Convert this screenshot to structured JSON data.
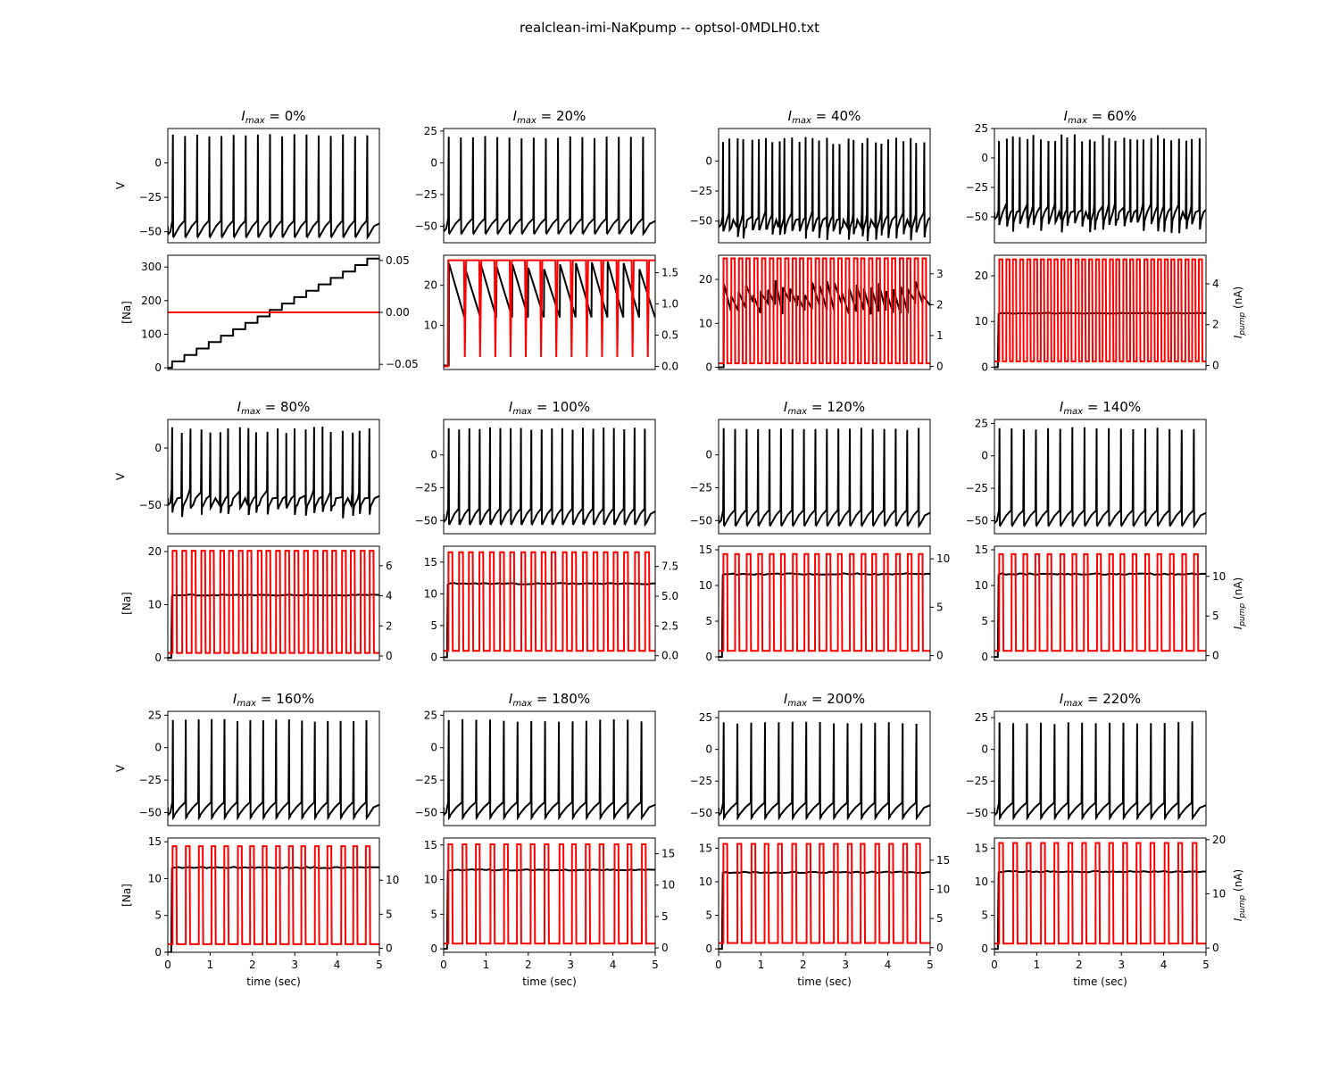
{
  "figure": {
    "title": "realclean-imi-NaKpump -- optsol-0MDLH0.txt",
    "panel_title_prefix": "I",
    "panel_title_subscript": "max",
    "v_axis_label": "V",
    "na_axis_label": "[Na]",
    "pump_axis_label_main": "I",
    "pump_axis_label_sub": "pump",
    "pump_axis_label_unit": " (nA)",
    "time_axis_label": "time (sec)",
    "colors": {
      "voltage": "#000000",
      "sodium": "#000000",
      "pump": "#ff0000"
    }
  },
  "chart_data": [
    {
      "type": "line",
      "title": "= 0%",
      "x_label": "time (sec)",
      "xlim": [
        0,
        5
      ],
      "xticks": [
        0,
        1,
        2,
        3,
        4,
        5
      ],
      "show_xticks": false,
      "v_ylim": [
        -58,
        25
      ],
      "v_yticks": [
        -50,
        -25,
        0
      ],
      "v_baseline": -52,
      "v_peak": 21,
      "v_nspikes": 17,
      "v_irregular": false,
      "na_ylim": [
        -5,
        335
      ],
      "na_yticks": [
        0,
        100,
        200,
        300
      ],
      "na_mode": "staircase",
      "na_start": 0,
      "na_end": 325,
      "na_level": null,
      "pump_ylim": [
        -0.055,
        0.055
      ],
      "pump_yticks": [
        -0.05,
        0.0,
        0.05
      ],
      "pump_tick_labels": [
        "−0.05",
        "0.00",
        "0.05"
      ],
      "pump_mode": "flat",
      "pump_level": 0,
      "pump_npulses": 0,
      "pump_peak": 0,
      "pump_low": 0,
      "show_v_label": true,
      "show_na_label": true,
      "show_pump_label": false
    },
    {
      "type": "line",
      "title": "= 20%",
      "x_label": "time (sec)",
      "xlim": [
        0,
        5
      ],
      "xticks": [
        0,
        1,
        2,
        3,
        4,
        5
      ],
      "show_xticks": false,
      "v_ylim": [
        -63,
        27
      ],
      "v_yticks": [
        -50,
        -25,
        0,
        25
      ],
      "v_baseline": -54,
      "v_peak": 21,
      "v_nspikes": 17,
      "v_irregular": false,
      "na_ylim": [
        -1,
        27.5
      ],
      "na_yticks": [
        10,
        20
      ],
      "na_mode": "sawtooth",
      "na_start": 0,
      "na_end": 0,
      "na_level": null,
      "na_high": 26,
      "na_low": 12,
      "pump_ylim": [
        -0.05,
        1.78
      ],
      "pump_yticks": [
        0.0,
        0.5,
        1.0,
        1.5
      ],
      "pump_tick_labels": [
        "0.0",
        "0.5",
        "1.0",
        "1.5"
      ],
      "pump_mode": "pulses",
      "pump_level": 0,
      "pump_npulses": 13,
      "pump_peak": 1.7,
      "pump_low": 0.0,
      "pump_inverted": true,
      "show_v_label": false,
      "show_na_label": false,
      "show_pump_label": false
    },
    {
      "type": "line",
      "title": "= 40%",
      "x_label": "time (sec)",
      "xlim": [
        0,
        5
      ],
      "xticks": [
        0,
        1,
        2,
        3,
        4,
        5
      ],
      "show_xticks": false,
      "v_ylim": [
        -68,
        27
      ],
      "v_yticks": [
        -50,
        -25,
        0
      ],
      "v_baseline": -55,
      "v_peak": 20,
      "v_nspikes": 30,
      "v_irregular": true,
      "na_ylim": [
        -0.5,
        25.5
      ],
      "na_yticks": [
        0,
        10,
        20
      ],
      "na_mode": "sawtooth",
      "na_start": 0,
      "na_end": 0,
      "na_level": null,
      "na_high": 20,
      "na_low": 12,
      "na_fast": true,
      "pump_ylim": [
        -0.1,
        3.6
      ],
      "pump_yticks": [
        0,
        1,
        2,
        3
      ],
      "pump_tick_labels": [
        "0",
        "1",
        "2",
        "3"
      ],
      "pump_mode": "pulses",
      "pump_level": 0,
      "pump_npulses": 27,
      "pump_peak": 3.5,
      "pump_low": 0.1,
      "pump_inverted": false,
      "show_v_label": false,
      "show_na_label": false,
      "show_pump_label": false
    },
    {
      "type": "line",
      "title": "= 60%",
      "x_label": "time (sec)",
      "xlim": [
        0,
        5
      ],
      "xticks": [
        0,
        1,
        2,
        3,
        4,
        5
      ],
      "show_xticks": false,
      "v_ylim": [
        -72,
        25
      ],
      "v_yticks": [
        -50,
        -25,
        0,
        25
      ],
      "v_baseline": -52,
      "v_peak": 20,
      "v_nspikes": 30,
      "v_irregular": true,
      "na_ylim": [
        -0.5,
        24.5
      ],
      "na_yticks": [
        0,
        10,
        20
      ],
      "na_mode": "level",
      "na_start": 0,
      "na_end": 0,
      "na_level": 11.8,
      "pump_ylim": [
        -0.2,
        5.4
      ],
      "pump_yticks": [
        0,
        2,
        4
      ],
      "pump_tick_labels": [
        "0",
        "2",
        "4"
      ],
      "pump_mode": "pulses",
      "pump_level": 0,
      "pump_npulses": 30,
      "pump_peak": 5.2,
      "pump_low": 0.2,
      "pump_inverted": false,
      "show_v_label": false,
      "show_na_label": false,
      "show_pump_label": true
    },
    {
      "type": "line",
      "title": "= 80%",
      "x_label": "time (sec)",
      "xlim": [
        0,
        5
      ],
      "xticks": [
        0,
        1,
        2,
        3,
        4,
        5
      ],
      "show_xticks": false,
      "v_ylim": [
        -75,
        25
      ],
      "v_yticks": [
        -50,
        0
      ],
      "v_baseline": -50,
      "v_peak": 19,
      "v_nspikes": 22,
      "v_irregular": true,
      "na_ylim": [
        -0.5,
        21
      ],
      "na_yticks": [
        0,
        10,
        20
      ],
      "na_mode": "level",
      "na_start": 0,
      "na_end": 0,
      "na_level": 11.8,
      "pump_ylim": [
        -0.3,
        7.3
      ],
      "pump_yticks": [
        0,
        2,
        4,
        6
      ],
      "pump_tick_labels": [
        "0",
        "2",
        "4",
        "6"
      ],
      "pump_mode": "pulses",
      "pump_level": 0,
      "pump_npulses": 22,
      "pump_peak": 7.0,
      "pump_low": 0.2,
      "pump_inverted": false,
      "show_v_label": true,
      "show_na_label": true,
      "show_pump_label": false
    },
    {
      "type": "line",
      "title": "= 100%",
      "x_label": "time (sec)",
      "xlim": [
        0,
        5
      ],
      "xticks": [
        0,
        1,
        2,
        3,
        4,
        5
      ],
      "show_xticks": false,
      "v_ylim": [
        -60,
        27
      ],
      "v_yticks": [
        -50,
        -25,
        0
      ],
      "v_baseline": -51,
      "v_peak": 21,
      "v_nspikes": 20,
      "v_irregular": false,
      "na_ylim": [
        -0.5,
        17.5
      ],
      "na_yticks": [
        0,
        5,
        10,
        15
      ],
      "na_mode": "level",
      "na_start": 0,
      "na_end": 0,
      "na_level": 11.6,
      "pump_ylim": [
        -0.4,
        9.2
      ],
      "pump_yticks": [
        0.0,
        2.5,
        5.0,
        7.5
      ],
      "pump_tick_labels": [
        "0.0",
        "2.5",
        "5.0",
        "7.5"
      ],
      "pump_mode": "pulses",
      "pump_level": 0,
      "pump_npulses": 20,
      "pump_peak": 8.7,
      "pump_low": 0.4,
      "pump_inverted": false,
      "show_v_label": false,
      "show_na_label": false,
      "show_pump_label": false
    },
    {
      "type": "line",
      "title": "= 120%",
      "x_label": "time (sec)",
      "xlim": [
        0,
        5
      ],
      "xticks": [
        0,
        1,
        2,
        3,
        4,
        5
      ],
      "show_xticks": false,
      "v_ylim": [
        -60,
        27
      ],
      "v_yticks": [
        -50,
        -25,
        0
      ],
      "v_baseline": -52,
      "v_peak": 21,
      "v_nspikes": 18,
      "v_irregular": false,
      "na_ylim": [
        -0.5,
        15.5
      ],
      "na_yticks": [
        0,
        5,
        10,
        15
      ],
      "na_mode": "level",
      "na_start": 0,
      "na_end": 0,
      "na_level": 11.6,
      "pump_ylim": [
        -0.5,
        11.3
      ],
      "pump_yticks": [
        0,
        5,
        10
      ],
      "pump_tick_labels": [
        "0",
        "5",
        "10"
      ],
      "pump_mode": "pulses",
      "pump_level": 0,
      "pump_npulses": 18,
      "pump_peak": 10.5,
      "pump_low": 0.5,
      "pump_inverted": false,
      "show_v_label": false,
      "show_na_label": false,
      "show_pump_label": false
    },
    {
      "type": "line",
      "title": "= 140%",
      "x_label": "time (sec)",
      "xlim": [
        0,
        5
      ],
      "xticks": [
        0,
        1,
        2,
        3,
        4,
        5
      ],
      "show_xticks": false,
      "v_ylim": [
        -60,
        28
      ],
      "v_yticks": [
        -50,
        -25,
        0,
        25
      ],
      "v_baseline": -52,
      "v_peak": 22,
      "v_nspikes": 17,
      "v_irregular": false,
      "na_ylim": [
        -0.5,
        15.5
      ],
      "na_yticks": [
        0,
        5,
        10,
        15
      ],
      "na_mode": "level",
      "na_start": 0,
      "na_end": 0,
      "na_level": 11.6,
      "pump_ylim": [
        -0.6,
        13.8
      ],
      "pump_yticks": [
        0,
        5,
        10
      ],
      "pump_tick_labels": [
        "0",
        "5",
        "10"
      ],
      "pump_mode": "pulses",
      "pump_level": 0,
      "pump_npulses": 17,
      "pump_peak": 12.8,
      "pump_low": 0.6,
      "pump_inverted": false,
      "show_v_label": false,
      "show_na_label": false,
      "show_pump_label": true
    },
    {
      "type": "line",
      "title": "= 160%",
      "x_label": "time (sec)",
      "xlim": [
        0,
        5
      ],
      "xticks": [
        0,
        1,
        2,
        3,
        4,
        5
      ],
      "show_xticks": true,
      "v_ylim": [
        -60,
        28
      ],
      "v_yticks": [
        -50,
        -25,
        0,
        25
      ],
      "v_baseline": -52,
      "v_peak": 22,
      "v_nspikes": 16,
      "v_irregular": false,
      "na_ylim": [
        0,
        15.5
      ],
      "na_yticks": [
        0,
        5,
        10,
        15
      ],
      "na_mode": "level",
      "na_start": 0,
      "na_end": 0,
      "na_level": 11.5,
      "pump_ylim": [
        -0.6,
        16.2
      ],
      "pump_yticks": [
        0,
        5,
        10
      ],
      "pump_tick_labels": [
        "0",
        "5",
        "10"
      ],
      "pump_mode": "pulses",
      "pump_level": 0,
      "pump_npulses": 16,
      "pump_peak": 15.0,
      "pump_low": 0.6,
      "pump_inverted": false,
      "show_v_label": true,
      "show_na_label": true,
      "show_pump_label": false
    },
    {
      "type": "line",
      "title": "= 180%",
      "x_label": "time (sec)",
      "xlim": [
        0,
        5
      ],
      "xticks": [
        0,
        1,
        2,
        3,
        4,
        5
      ],
      "show_xticks": true,
      "v_ylim": [
        -60,
        28
      ],
      "v_yticks": [
        -50,
        -25,
        0,
        25
      ],
      "v_baseline": -52,
      "v_peak": 22,
      "v_nspikes": 15,
      "v_irregular": false,
      "na_ylim": [
        -0.5,
        16
      ],
      "na_yticks": [
        0,
        5,
        10,
        15
      ],
      "na_mode": "level",
      "na_start": 0,
      "na_end": 0,
      "na_level": 11.4,
      "pump_ylim": [
        -0.7,
        17.5
      ],
      "pump_yticks": [
        0,
        5,
        10,
        15
      ],
      "pump_tick_labels": [
        "0",
        "5",
        "10",
        "15"
      ],
      "pump_mode": "pulses",
      "pump_level": 0,
      "pump_npulses": 15,
      "pump_peak": 16.5,
      "pump_low": 0.7,
      "pump_inverted": false,
      "show_v_label": false,
      "show_na_label": false,
      "show_pump_label": false
    },
    {
      "type": "line",
      "title": "= 200%",
      "x_label": "time (sec)",
      "xlim": [
        0,
        5
      ],
      "xticks": [
        0,
        1,
        2,
        3,
        4,
        5
      ],
      "show_xticks": true,
      "v_ylim": [
        -60,
        30
      ],
      "v_yticks": [
        -50,
        -25,
        0,
        25
      ],
      "v_baseline": -52,
      "v_peak": 22,
      "v_nspikes": 15,
      "v_irregular": false,
      "na_ylim": [
        -0.5,
        16.5
      ],
      "na_yticks": [
        0,
        5,
        10,
        15
      ],
      "na_mode": "level",
      "na_start": 0,
      "na_end": 0,
      "na_level": 11.4,
      "pump_ylim": [
        -0.8,
        18.8
      ],
      "pump_yticks": [
        0,
        5,
        10,
        15
      ],
      "pump_tick_labels": [
        "0",
        "5",
        "10",
        "15"
      ],
      "pump_mode": "pulses",
      "pump_level": 0,
      "pump_npulses": 15,
      "pump_peak": 17.8,
      "pump_low": 0.8,
      "pump_inverted": false,
      "show_v_label": false,
      "show_na_label": false,
      "show_pump_label": false
    },
    {
      "type": "line",
      "title": "= 220%",
      "x_label": "time (sec)",
      "xlim": [
        0,
        5
      ],
      "xticks": [
        0,
        1,
        2,
        3,
        4,
        5
      ],
      "show_xticks": true,
      "v_ylim": [
        -60,
        30
      ],
      "v_yticks": [
        -50,
        -25,
        0,
        25
      ],
      "v_baseline": -52,
      "v_peak": 22,
      "v_nspikes": 15,
      "v_irregular": false,
      "na_ylim": [
        -0.5,
        16.5
      ],
      "na_yticks": [
        0,
        5,
        10,
        15
      ],
      "na_mode": "level",
      "na_start": 0,
      "na_end": 0,
      "na_level": 11.5,
      "pump_ylim": [
        -0.8,
        20.3
      ],
      "pump_yticks": [
        0,
        10,
        20
      ],
      "pump_tick_labels": [
        "0",
        "10",
        "20"
      ],
      "pump_mode": "pulses",
      "pump_level": 0,
      "pump_npulses": 15,
      "pump_peak": 19.4,
      "pump_low": 0.8,
      "pump_inverted": false,
      "show_v_label": false,
      "show_na_label": false,
      "show_pump_label": true
    }
  ]
}
